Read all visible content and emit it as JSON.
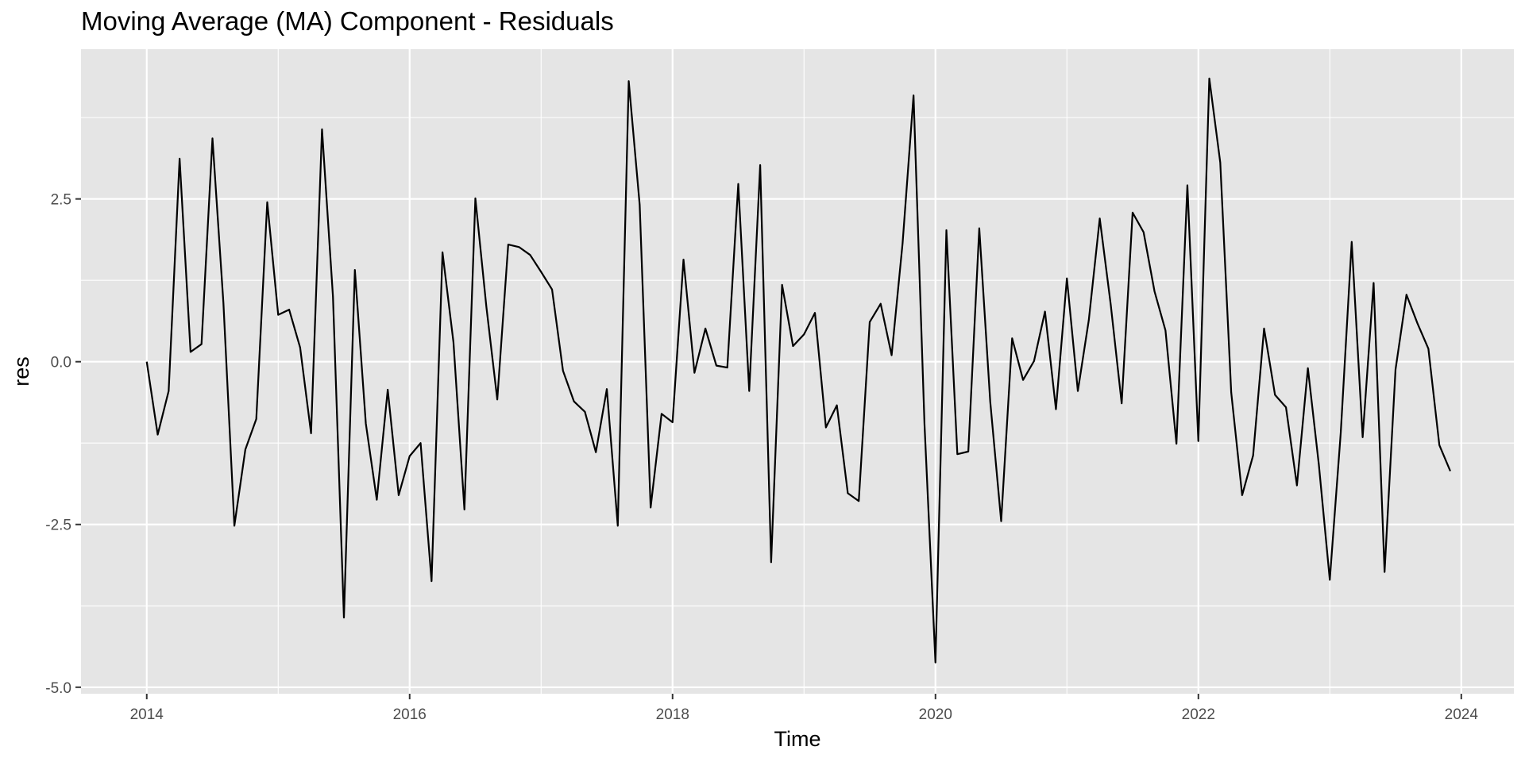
{
  "chart_data": {
    "type": "line",
    "title": "Moving Average (MA) Component - Residuals",
    "xlabel": "Time",
    "ylabel": "res",
    "xlim": [
      2013.5,
      2024.4
    ],
    "ylim": [
      -5.1,
      4.8
    ],
    "x_ticks": [
      2014,
      2016,
      2018,
      2020,
      2022,
      2024
    ],
    "x_tick_labels": [
      "2014",
      "2016",
      "2018",
      "2020",
      "2022",
      "2024"
    ],
    "y_ticks": [
      -5.0,
      -2.5,
      0.0,
      2.5
    ],
    "y_tick_labels": [
      "-5.0",
      "-2.5",
      "0.0",
      "2.5"
    ],
    "x_start": 2014,
    "x_step": 0.08333,
    "grid": true,
    "background": "#e5e5e5",
    "grid_color": "#ffffff",
    "line_color": "#000000",
    "series": [
      {
        "values": [
          0.0,
          -1.12,
          -0.45,
          3.12,
          0.15,
          0.27,
          3.43,
          0.9,
          -2.52,
          -1.35,
          -0.88,
          2.45,
          0.72,
          0.8,
          0.22,
          -1.1,
          3.57,
          1.0,
          -3.93,
          1.41,
          -0.95,
          -2.12,
          -0.43,
          -2.05,
          -1.45,
          -1.25,
          -3.37,
          1.68,
          0.3,
          -2.27,
          2.51,
          0.85,
          -0.58,
          1.8,
          1.76,
          1.64,
          1.38,
          1.11,
          -0.14,
          -0.61,
          -0.77,
          -1.39,
          -0.42,
          -2.52,
          4.31,
          2.41,
          -2.24,
          -0.8,
          -0.93,
          1.57,
          -0.17,
          0.51,
          -0.06,
          -0.09,
          2.73,
          -0.45,
          3.02,
          -3.08,
          1.18,
          0.24,
          0.42,
          0.75,
          -1.01,
          -0.67,
          -2.02,
          -2.14,
          0.61,
          0.89,
          0.1,
          1.82,
          4.09,
          -0.96,
          -4.62,
          2.02,
          -1.42,
          -1.38,
          2.05,
          -0.61,
          -2.45,
          0.36,
          -0.28,
          0.01,
          0.77,
          -0.73,
          1.28,
          -0.45,
          0.64,
          2.2,
          0.88,
          -0.64,
          2.29,
          1.99,
          1.08,
          0.48,
          -1.26,
          2.71,
          -1.22,
          4.35,
          3.06,
          -0.47,
          -2.05,
          -1.44,
          0.51,
          -0.51,
          -0.7,
          -1.9,
          -0.1,
          -1.58,
          -3.35,
          -1.09,
          1.84,
          -1.16,
          1.21,
          -3.23,
          -0.12,
          1.03,
          0.59,
          0.2,
          -1.28,
          -1.68
        ]
      }
    ]
  }
}
